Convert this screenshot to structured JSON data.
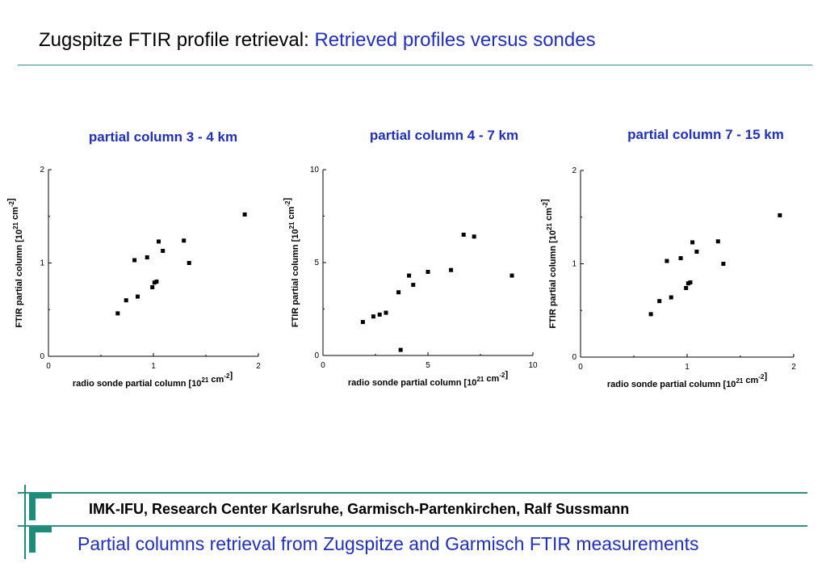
{
  "header": {
    "title_prefix": "Zugspitze FTIR profile retrieval: ",
    "title_highlight": "Retrieved profiles versus sondes"
  },
  "colors": {
    "accent": "#1f2fbf",
    "rule": "#2f8f86",
    "logo": "#1e8c78"
  },
  "chart_data": [
    {
      "type": "scatter",
      "title": "partial column 3 - 4 km",
      "xlabel": "radio sonde partial column [10",
      "xlabel_sup": "21",
      "xlabel_mid": " cm",
      "xlabel_sup2": "-2",
      "xlabel_end": "]",
      "ylabel": "FTIR partial column [10",
      "ylabel_sup": "21",
      "ylabel_mid": " cm",
      "ylabel_sup2": "-2",
      "ylabel_end": "]",
      "xlim": [
        0,
        2
      ],
      "ylim": [
        0,
        2
      ],
      "xticks": [
        0,
        1,
        2
      ],
      "yticks": [
        0,
        1,
        2
      ],
      "xticklabels": [
        "0",
        "1",
        "2"
      ],
      "yticklabels": [
        "0",
        "1",
        "2"
      ],
      "points": [
        [
          0.66,
          0.46
        ],
        [
          0.74,
          0.6
        ],
        [
          0.82,
          1.03
        ],
        [
          0.85,
          0.64
        ],
        [
          0.94,
          1.06
        ],
        [
          0.99,
          0.74
        ],
        [
          1.01,
          0.79
        ],
        [
          1.03,
          0.8
        ],
        [
          1.05,
          1.23
        ],
        [
          1.09,
          1.13
        ],
        [
          1.29,
          1.24
        ],
        [
          1.34,
          1.0
        ],
        [
          1.87,
          1.52
        ]
      ]
    },
    {
      "type": "scatter",
      "title": "partial column 4 - 7 km",
      "xlabel": "radio sonde partial column [10",
      "xlabel_sup": "21",
      "xlabel_mid": " cm",
      "xlabel_sup2": "-2",
      "xlabel_end": "]",
      "ylabel": "FTIR partial column [10",
      "ylabel_sup": "21",
      "ylabel_mid": " cm",
      "ylabel_sup2": "-2",
      "ylabel_end": "]",
      "xlim": [
        0,
        10
      ],
      "ylim": [
        0,
        10
      ],
      "xticks": [
        0,
        5,
        10
      ],
      "yticks": [
        0,
        5,
        10
      ],
      "xticklabels": [
        "0",
        "5",
        "10"
      ],
      "yticklabels": [
        "0",
        "5",
        "10"
      ],
      "points": [
        [
          1.9,
          1.8
        ],
        [
          2.4,
          2.1
        ],
        [
          2.7,
          2.2
        ],
        [
          3.0,
          2.3
        ],
        [
          3.6,
          3.4
        ],
        [
          3.7,
          0.3
        ],
        [
          4.1,
          4.3
        ],
        [
          4.3,
          3.8
        ],
        [
          5.0,
          4.5
        ],
        [
          6.1,
          4.6
        ],
        [
          6.7,
          6.5
        ],
        [
          7.2,
          6.4
        ],
        [
          9.0,
          4.3
        ]
      ]
    },
    {
      "type": "scatter",
      "title": "partial column 7 - 15 km",
      "xlabel": "radio sonde partial column [10",
      "xlabel_sup": "21",
      "xlabel_mid": " cm",
      "xlabel_sup2": "-2",
      "xlabel_end": "]",
      "ylabel": "FTIR partial column [10",
      "ylabel_sup": "21",
      "ylabel_mid": " cm",
      "ylabel_sup2": "-2",
      "ylabel_end": "]",
      "xlim": [
        0,
        2
      ],
      "ylim": [
        0,
        2
      ],
      "xticks": [
        0,
        1,
        2
      ],
      "yticks": [
        0,
        1,
        2
      ],
      "xticklabels": [
        "0",
        "1",
        "2"
      ],
      "yticklabels": [
        "0",
        "1",
        "2"
      ],
      "points": [
        [
          0.66,
          0.46
        ],
        [
          0.74,
          0.6
        ],
        [
          0.81,
          1.03
        ],
        [
          0.85,
          0.64
        ],
        [
          0.94,
          1.06
        ],
        [
          0.99,
          0.74
        ],
        [
          1.01,
          0.79
        ],
        [
          1.03,
          0.8
        ],
        [
          1.05,
          1.23
        ],
        [
          1.09,
          1.13
        ],
        [
          1.29,
          1.24
        ],
        [
          1.34,
          1.0
        ],
        [
          1.87,
          1.52
        ]
      ]
    }
  ],
  "footer": {
    "org": "IMK-IFU, Research Center Karlsruhe, Garmisch-Partenkirchen, Ralf Sussmann",
    "subtitle": "Partial columns retrieval from Zugspitze and Garmisch FTIR measurements"
  }
}
